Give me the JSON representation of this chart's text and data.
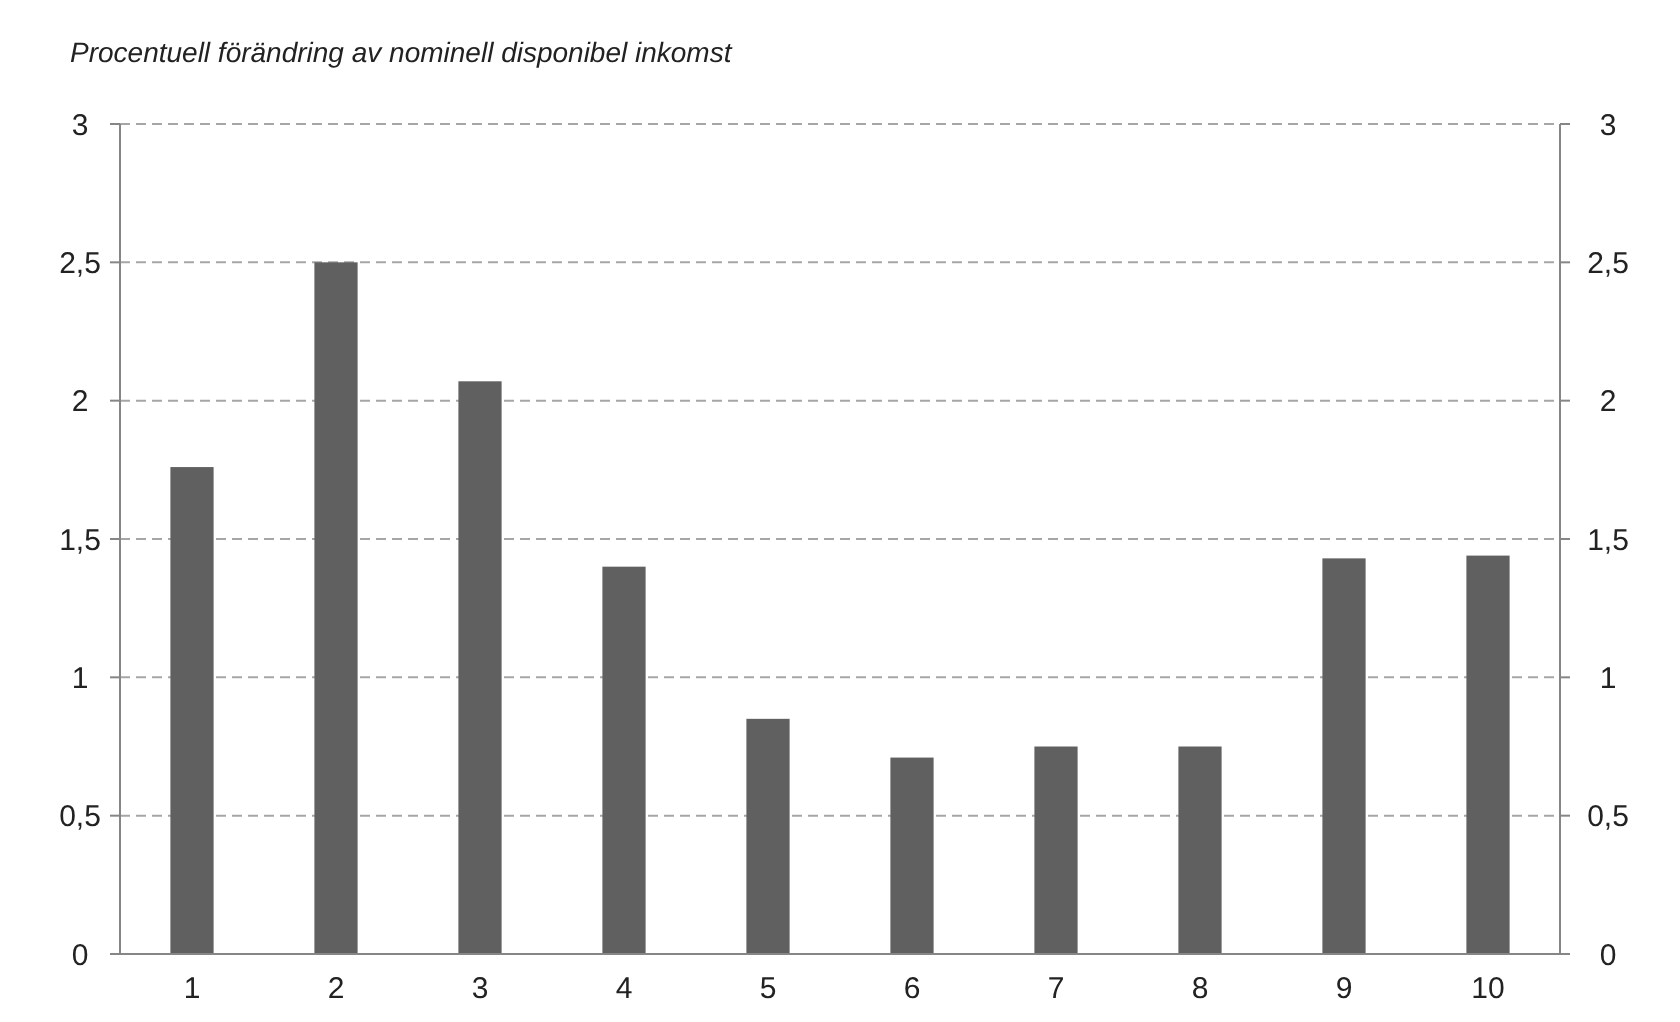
{
  "chart_data": {
    "type": "bar",
    "title": "Procentuell förändring av nominell disponibel inkomst",
    "categories": [
      "1",
      "2",
      "3",
      "4",
      "5",
      "6",
      "7",
      "8",
      "9",
      "10"
    ],
    "values": [
      1.76,
      2.5,
      2.07,
      1.4,
      0.85,
      0.71,
      0.75,
      0.75,
      1.43,
      1.44
    ],
    "color": "#606060",
    "ylim": [
      0,
      3
    ],
    "yticks": [
      0,
      {
        "value": 0.5,
        "label": "0,5"
      },
      1,
      {
        "value": 1.5,
        "label": "1,5"
      },
      2,
      {
        "value": 2.5,
        "label": "2,5"
      },
      3
    ],
    "y2lim": [
      0,
      3
    ],
    "y2ticks": [
      0,
      {
        "value": 0.5,
        "label": "0,5"
      },
      1,
      {
        "value": 1.5,
        "label": "1,5"
      },
      2,
      {
        "value": 2.5,
        "label": "2,5"
      },
      3
    ],
    "grid": "y"
  }
}
